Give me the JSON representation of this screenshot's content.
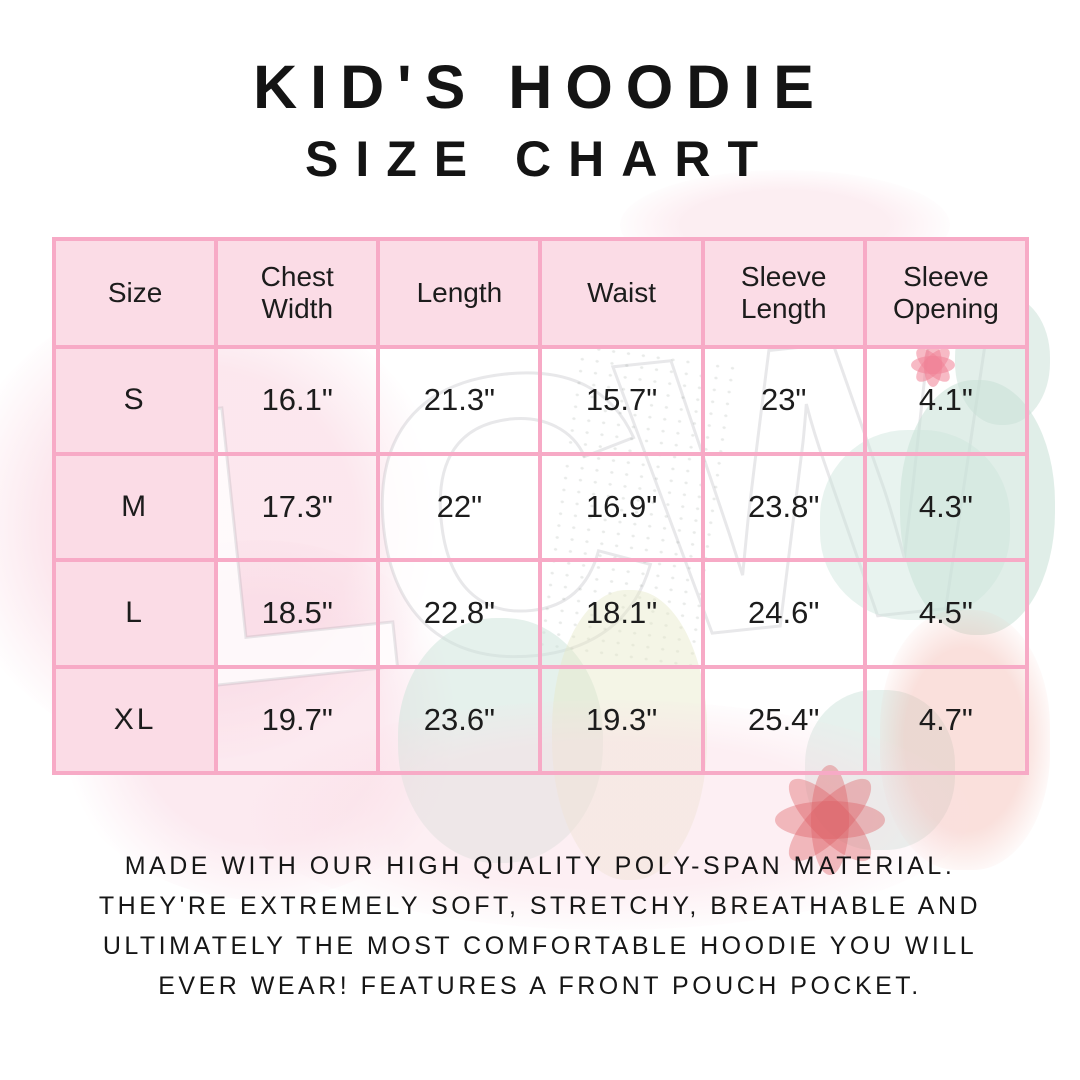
{
  "title": {
    "line1": "KID'S HOODIE",
    "line2": "SIZE CHART"
  },
  "size_chart": {
    "columns": [
      "Size",
      "Chest Width",
      "Length",
      "Waist",
      "Sleeve Length",
      "Sleeve Opening"
    ],
    "rows": [
      {
        "size": "S",
        "chest_width": "16.1\"",
        "length": "21.3\"",
        "waist": "15.7\"",
        "sleeve_length": "23\"",
        "sleeve_opening": "4.1\""
      },
      {
        "size": "M",
        "chest_width": "17.3\"",
        "length": "22\"",
        "waist": "16.9\"",
        "sleeve_length": "23.8\"",
        "sleeve_opening": "4.3\""
      },
      {
        "size": "L",
        "chest_width": "18.5\"",
        "length": "22.8\"",
        "waist": "18.1\"",
        "sleeve_length": "24.6\"",
        "sleeve_opening": "4.5\""
      },
      {
        "size": "XL",
        "chest_width": "19.7\"",
        "length": "23.6\"",
        "waist": "19.3\"",
        "sleeve_length": "25.4\"",
        "sleeve_opening": "4.7\""
      }
    ]
  },
  "description": {
    "line1": "MADE WITH OUR HIGH QUALITY POLY-SPAN MATERIAL.",
    "line2": "THEY'RE EXTREMELY SOFT, STRETCHY, BREATHABLE AND",
    "line3": "ULTIMATELY THE MOST COMFORTABLE HOODIE YOU WILL",
    "line4": "EVER WEAR! FEATURES A FRONT POUCH POCKET."
  },
  "watermark": {
    "brand_letters": "LCW"
  },
  "colors": {
    "table_border": "#f7aac6",
    "header_bg": "#fbdce6",
    "text": "#141414"
  }
}
